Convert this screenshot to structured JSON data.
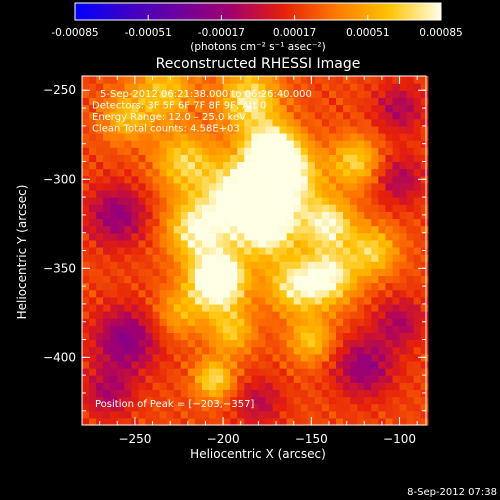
{
  "colorbar": {
    "ticks": [
      "-0.00085",
      "-0.00051",
      "-0.00017",
      "0.00017",
      "0.00051",
      "0.00085"
    ],
    "tick_values": [
      -0.00085,
      -0.00051,
      -0.00017,
      0.00017,
      0.00051,
      0.00085
    ],
    "range": [
      -0.00085,
      0.00085
    ],
    "unit_label": "(photons cm⁻² s⁻¹ asec⁻²)",
    "colors": [
      "#0000ff",
      "#3c00c8",
      "#6f009e",
      "#a3006d",
      "#e6200a",
      "#ff7a00",
      "#ffc200",
      "#ffffe6"
    ]
  },
  "footer": {
    "date": "8-Sep-2012 07:38"
  },
  "chart_data": {
    "type": "heatmap",
    "title": "Reconstructed RHESSI Image",
    "xlabel": "Heliocentric X (arcsec)",
    "ylabel": "Heliocentric Y (arcsec)",
    "xlim": [
      -280,
      -85
    ],
    "ylim": [
      -438,
      -242
    ],
    "x_ticks": [
      -250,
      -200,
      -150,
      -100
    ],
    "y_ticks": [
      -250,
      -300,
      -350,
      -400
    ],
    "info_lines": [
      "5-Sep-2012 06:21:38.000 to 06:26:40.000",
      "Detectors: 3F 5F 6F 7F 8F 9F, Att 0",
      "Energy Range: 12.0 – 25.0 keV",
      "Clean    Total counts: 4.58E+03"
    ],
    "peak_label": "Position of Peak = [−203,−357]",
    "peak": [
      -203,
      -357
    ],
    "sources": [
      {
        "x": -203,
        "y": -357,
        "sigma": 11,
        "amp": 0.00095
      },
      {
        "x": -172,
        "y": -285,
        "sigma": 11,
        "amp": 0.00085
      },
      {
        "x": -175,
        "y": -325,
        "sigma": 13,
        "amp": 0.00075
      },
      {
        "x": -215,
        "y": -328,
        "sigma": 12,
        "amp": 0.0006
      },
      {
        "x": -185,
        "y": -255,
        "sigma": 12,
        "amp": 0.00055
      },
      {
        "x": -140,
        "y": -325,
        "sigma": 10,
        "amp": 0.0006
      },
      {
        "x": -140,
        "y": -355,
        "sigma": 11,
        "amp": 0.0006
      },
      {
        "x": -160,
        "y": -360,
        "sigma": 11,
        "amp": 0.0005
      },
      {
        "x": -222,
        "y": -290,
        "sigma": 12,
        "amp": 0.00045
      },
      {
        "x": -233,
        "y": -250,
        "sigma": 12,
        "amp": 0.0004
      },
      {
        "x": -255,
        "y": -265,
        "sigma": 10,
        "amp": 0.00035
      },
      {
        "x": -190,
        "y": -308,
        "sigma": 14,
        "amp": 0.0007
      },
      {
        "x": -160,
        "y": -300,
        "sigma": 12,
        "amp": 0.0005
      },
      {
        "x": -125,
        "y": -290,
        "sigma": 10,
        "amp": 0.00045
      },
      {
        "x": -115,
        "y": -340,
        "sigma": 10,
        "amp": 0.00045
      },
      {
        "x": -195,
        "y": -385,
        "sigma": 9,
        "amp": 0.0004
      },
      {
        "x": -205,
        "y": -412,
        "sigma": 8,
        "amp": 0.0005
      },
      {
        "x": -225,
        "y": -375,
        "sigma": 10,
        "amp": 0.0003
      },
      {
        "x": -150,
        "y": -390,
        "sigma": 9,
        "amp": 0.0004
      },
      {
        "x": -260,
        "y": -320,
        "sigma": 12,
        "amp": -0.0004
      },
      {
        "x": -255,
        "y": -390,
        "sigma": 13,
        "amp": -0.00045
      },
      {
        "x": -120,
        "y": -405,
        "sigma": 12,
        "amp": -0.0004
      },
      {
        "x": -100,
        "y": -260,
        "sigma": 10,
        "amp": -0.0003
      },
      {
        "x": -180,
        "y": -425,
        "sigma": 10,
        "amp": -0.00025
      },
      {
        "x": -100,
        "y": -300,
        "sigma": 10,
        "amp": -0.0003
      },
      {
        "x": -265,
        "y": -420,
        "sigma": 10,
        "amp": -0.0003
      },
      {
        "x": -100,
        "y": -380,
        "sigma": 10,
        "amp": -0.0003
      }
    ],
    "pixel_arcsec": 4,
    "grid": false,
    "legend": "colorbar at top"
  }
}
